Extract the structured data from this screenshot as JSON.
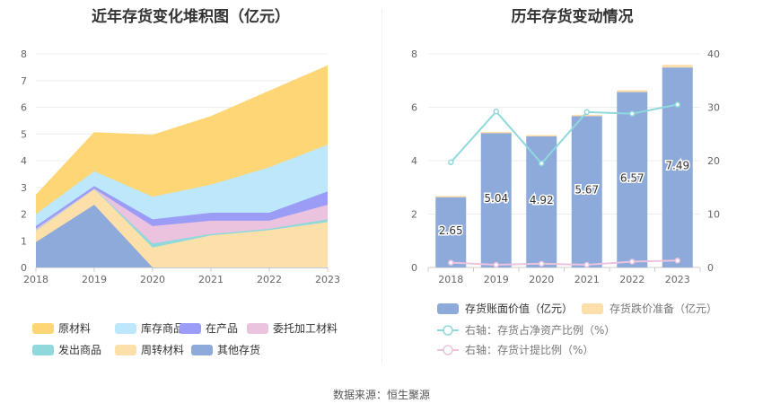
{
  "source": "数据来源：恒生聚源",
  "chart_data": [
    {
      "type": "area",
      "stacked": true,
      "title": "近年存货变化堆积图（亿元）",
      "x": [
        "2018",
        "2019",
        "2020",
        "2021",
        "2022",
        "2023"
      ],
      "ylim": [
        0,
        8
      ],
      "yticks": [
        0,
        1,
        2,
        3,
        4,
        5,
        6,
        7,
        8
      ],
      "grid": true,
      "legend": "bottom",
      "series": [
        {
          "name": "其他存货",
          "color": "#8eaadb",
          "values": [
            0.95,
            2.35,
            0.0,
            0.0,
            0.0,
            0.0
          ]
        },
        {
          "name": "周转材料",
          "color": "#fde0a9",
          "values": [
            0.45,
            0.6,
            0.75,
            1.2,
            1.4,
            1.7
          ]
        },
        {
          "name": "发出商品",
          "color": "#8fd8dc",
          "values": [
            0.0,
            0.0,
            0.15,
            0.05,
            0.05,
            0.1
          ]
        },
        {
          "name": "委托加工材料",
          "color": "#ebc3df",
          "values": [
            0.05,
            0.0,
            0.65,
            0.5,
            0.3,
            0.55
          ]
        },
        {
          "name": "在产品",
          "color": "#9a9cf5",
          "values": [
            0.1,
            0.1,
            0.25,
            0.3,
            0.3,
            0.5
          ]
        },
        {
          "name": "库存商品",
          "color": "#bde8fb",
          "values": [
            0.45,
            0.55,
            0.85,
            1.05,
            1.7,
            1.75
          ]
        },
        {
          "name": "原材料",
          "color": "#fed676",
          "values": [
            0.7,
            1.45,
            2.3,
            2.55,
            2.85,
            2.95
          ]
        }
      ],
      "legend_order": [
        "原材料",
        "库存商品",
        "在产品",
        "委托加工材料",
        "发出商品",
        "周转材料",
        "其他存货"
      ]
    },
    {
      "type": "bar",
      "title": "历年存货变动情况",
      "categories": [
        "2018",
        "2019",
        "2020",
        "2021",
        "2022",
        "2023"
      ],
      "ylim": [
        0,
        8
      ],
      "yticks": [
        0,
        2,
        4,
        6,
        8
      ],
      "y2lim": [
        0,
        40
      ],
      "y2ticks": [
        0,
        10,
        20,
        30,
        40
      ],
      "grid": true,
      "legend": "bottom",
      "series": [
        {
          "name": "存货账面价值（亿元）",
          "kind": "bar",
          "axis": "left",
          "color": "#8eaadb",
          "values": [
            2.65,
            5.04,
            4.92,
            5.67,
            6.57,
            7.49
          ],
          "labels": [
            "2.65",
            "5.04",
            "4.92",
            "5.67",
            "6.57",
            "7.49"
          ]
        },
        {
          "name": "存货跌价准备（亿元）",
          "kind": "bar-stack",
          "axis": "left",
          "color": "#fde0a9",
          "values": [
            0.03,
            0.04,
            0.04,
            0.05,
            0.07,
            0.1
          ]
        },
        {
          "name": "右轴：存货占净资产比例（%）",
          "kind": "line",
          "axis": "right",
          "color": "#8fd8dc",
          "values": [
            19.7,
            29.2,
            19.5,
            29.1,
            28.8,
            30.5
          ]
        },
        {
          "name": "右轴：存货计提比例（%）",
          "kind": "line",
          "axis": "right",
          "color": "#ebc3df",
          "values": [
            0.9,
            0.5,
            0.7,
            0.5,
            1.1,
            1.3
          ]
        }
      ]
    }
  ]
}
